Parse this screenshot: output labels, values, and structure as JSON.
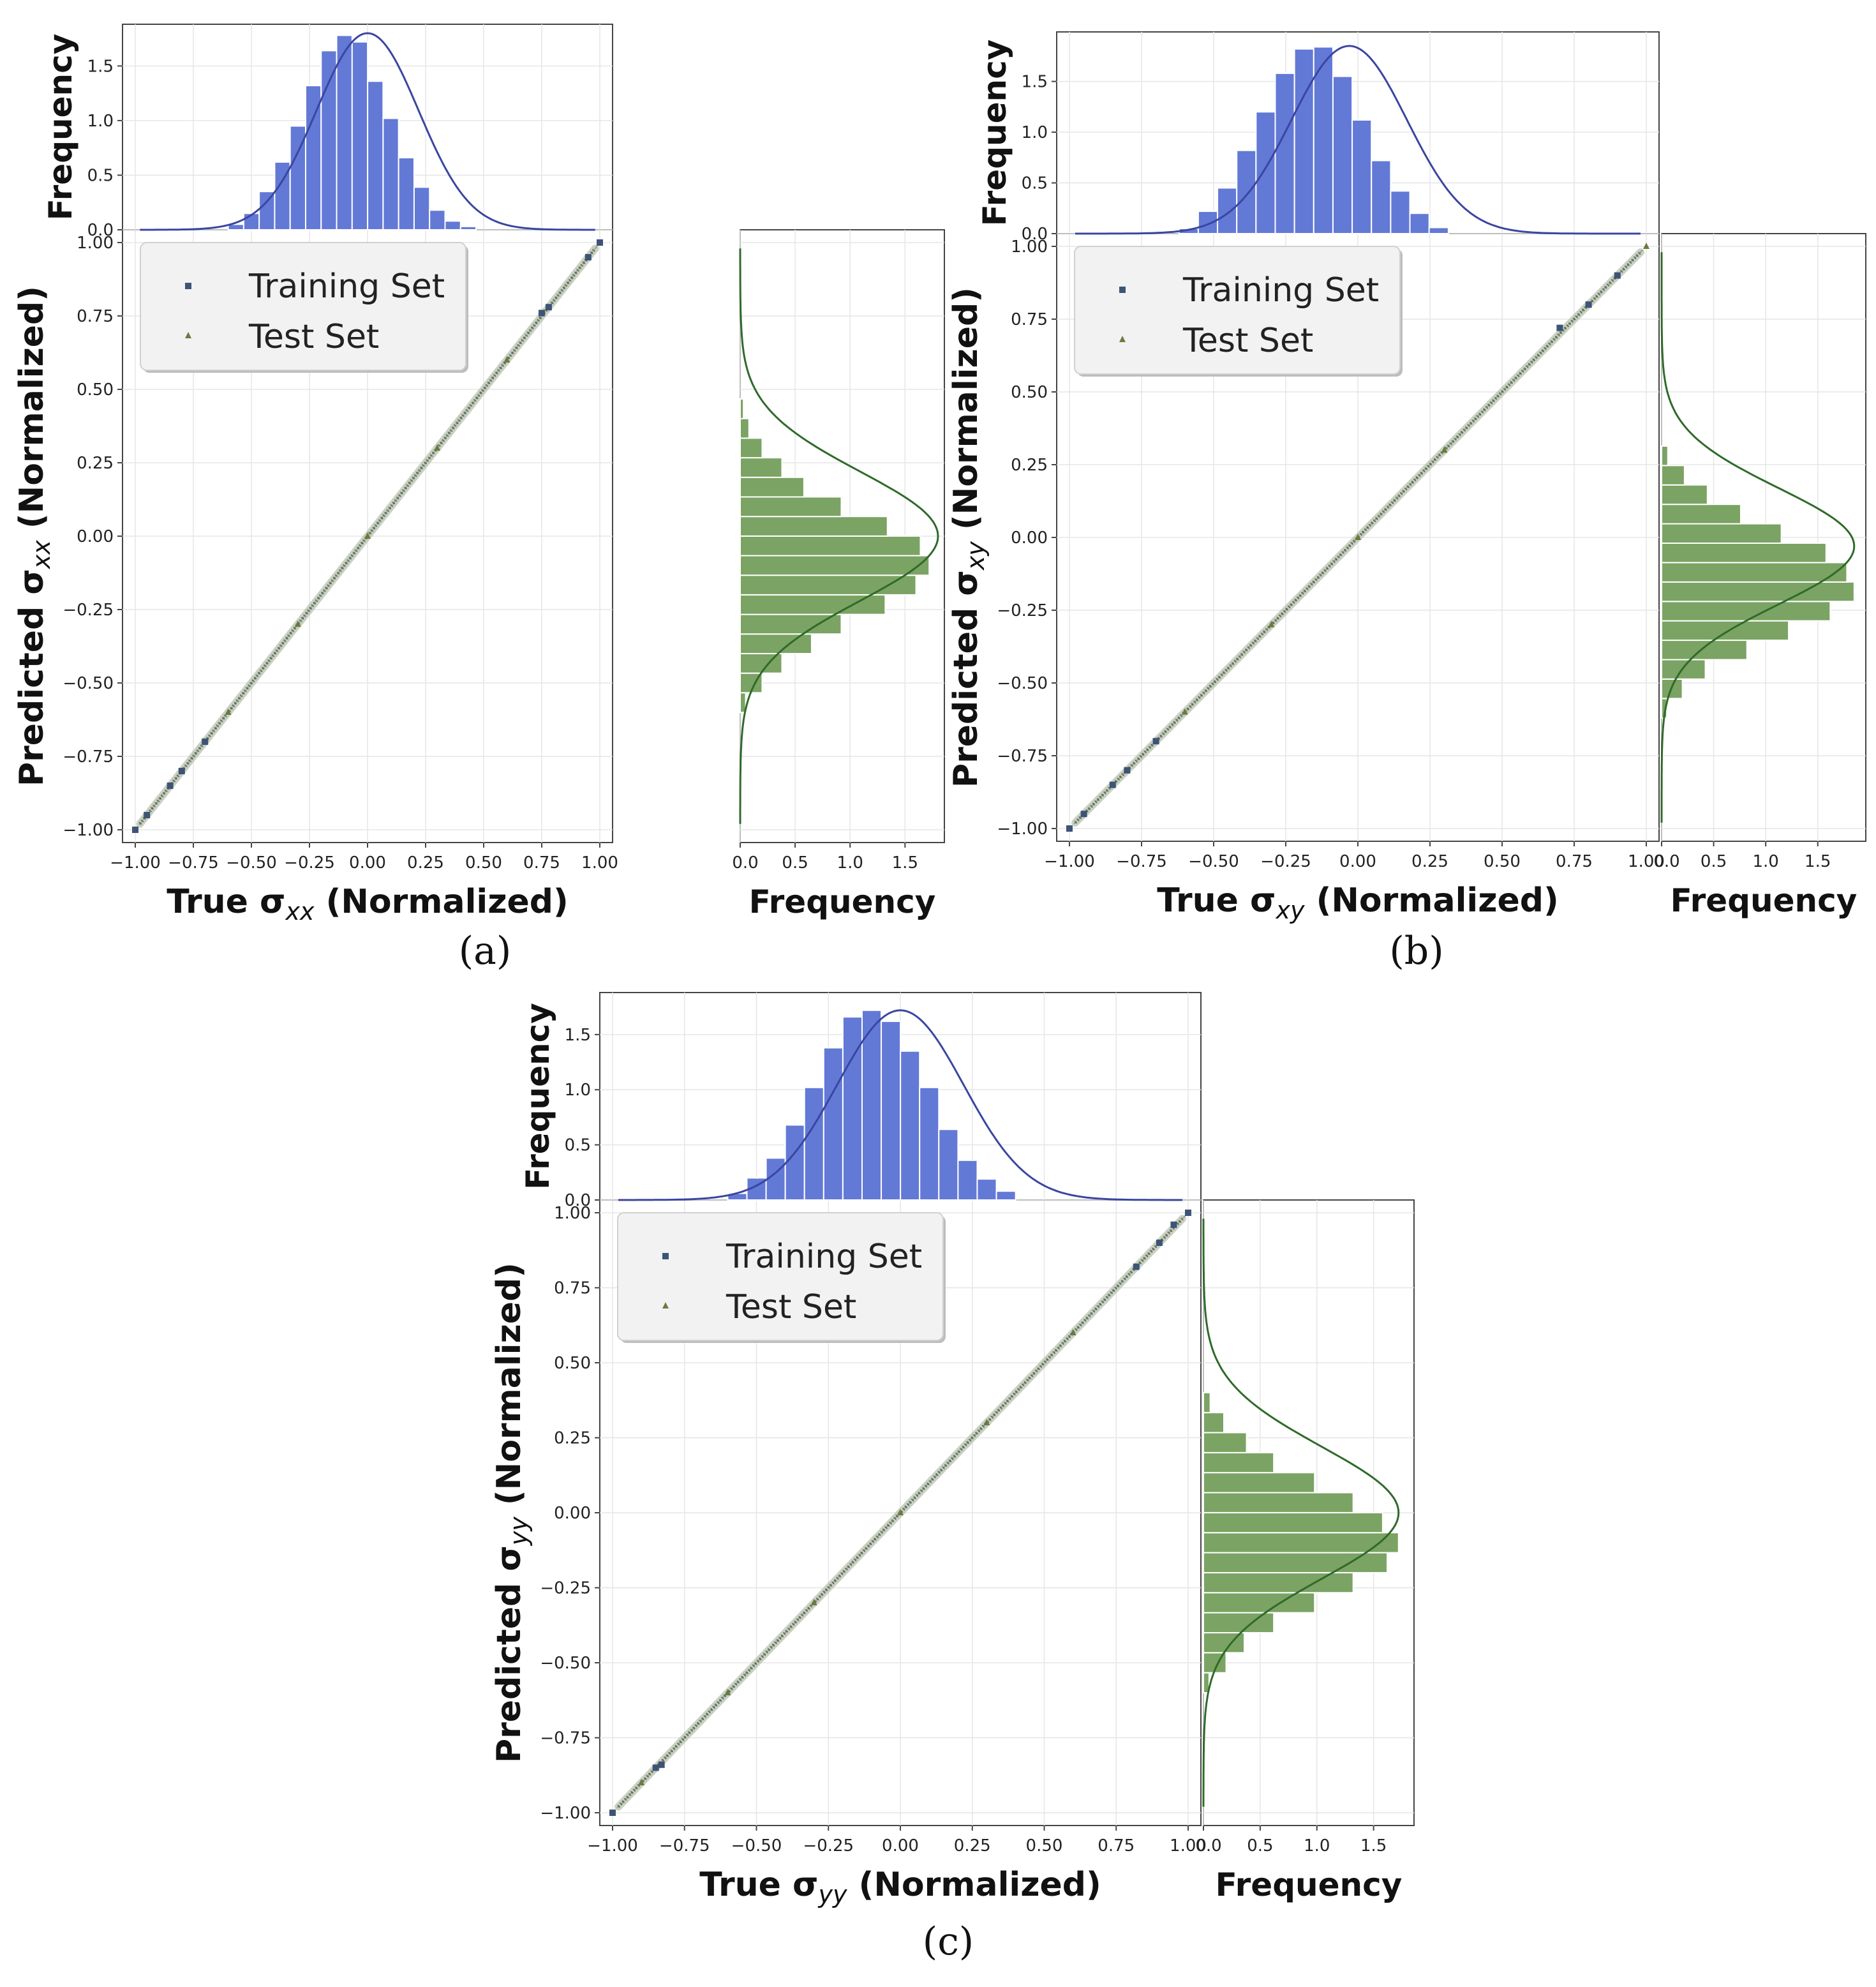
{
  "colors": {
    "top_hist_fill": "#6379d6",
    "top_kde_line": "#3a46a0",
    "side_hist_fill": "#7ba363",
    "side_kde_line": "#2f6a2a",
    "train_marker": "#3d5475",
    "test_marker": "#6b7a3f",
    "identity_line": "#333333",
    "grid": "#e6e6e6",
    "legend_bg": "#f2f2f2"
  },
  "chart_data": [
    {
      "panel": "a",
      "caption": "(a)",
      "type": "scatter",
      "subtype": "scatter_with_marginal_histograms",
      "xlabel": {
        "prefix": "True σ",
        "sub": "xx",
        "suffix": " (Normalized)"
      },
      "ylabel": {
        "prefix": "Predicted σ",
        "sub": "xx",
        "suffix": " (Normalized)"
      },
      "xlim": [
        -1.0,
        1.0
      ],
      "ylim": [
        -1.0,
        1.0
      ],
      "ticks": [
        -1.0,
        -0.75,
        -0.5,
        -0.25,
        0.0,
        0.25,
        0.5,
        0.75,
        1.0
      ],
      "tick_labels": [
        "−1.00",
        "−0.75",
        "−0.50",
        "−0.25",
        "0.00",
        "0.25",
        "0.50",
        "0.75",
        "1.00"
      ],
      "legend": [
        "Training Set",
        "Test Set"
      ],
      "series": [
        {
          "name": "Training Set",
          "marker": "square",
          "points": [
            [
              -1.0,
              -1.0
            ],
            [
              -0.95,
              -0.95
            ],
            [
              -0.85,
              -0.85
            ],
            [
              -0.8,
              -0.8
            ],
            [
              -0.7,
              -0.7
            ],
            [
              0.75,
              0.76
            ],
            [
              0.78,
              0.78
            ],
            [
              0.95,
              0.95
            ],
            [
              1.0,
              1.0
            ]
          ]
        },
        {
          "name": "Test Set",
          "marker": "triangle",
          "points": [
            [
              -0.6,
              -0.6
            ],
            [
              -0.3,
              -0.3
            ],
            [
              0.0,
              0.0
            ],
            [
              0.3,
              0.3
            ],
            [
              0.6,
              0.6
            ]
          ]
        }
      ],
      "identity_line": true,
      "top_histogram": {
        "ylabel": "Frequency",
        "ylim": [
          0.0,
          1.8
        ],
        "yticks": [
          0.0,
          0.5,
          1.0,
          1.5
        ],
        "ytick_labels": [
          "0.0",
          "0.5",
          "1.0",
          "1.5"
        ],
        "bin_start": -0.6,
        "bin_width": 0.0667,
        "values": [
          0.05,
          0.15,
          0.35,
          0.62,
          0.95,
          1.32,
          1.64,
          1.78,
          1.72,
          1.36,
          1.02,
          0.66,
          0.39,
          0.18,
          0.08,
          0.03
        ],
        "kde_mean": 0.0,
        "kde_sd": 0.22,
        "kde_peak": 1.8
      },
      "side_histogram": {
        "xlabel": "Frequency",
        "xlim": [
          0.0,
          1.8
        ],
        "xticks": [
          0.0,
          0.5,
          1.0,
          1.5
        ],
        "xtick_labels": [
          "0.0",
          "0.5",
          "1.0",
          "1.5"
        ],
        "bin_start": -0.6,
        "bin_width": 0.0667,
        "values": [
          0.05,
          0.2,
          0.38,
          0.65,
          0.92,
          1.32,
          1.6,
          1.72,
          1.64,
          1.34,
          0.92,
          0.58,
          0.38,
          0.2,
          0.08,
          0.03
        ],
        "kde_mean": 0.0,
        "kde_sd": 0.22,
        "kde_peak": 1.8
      }
    },
    {
      "panel": "b",
      "caption": "(b)",
      "type": "scatter",
      "subtype": "scatter_with_marginal_histograms",
      "xlabel": {
        "prefix": "True σ",
        "sub": "xy",
        "suffix": " (Normalized)"
      },
      "ylabel": {
        "prefix": "Predicted σ",
        "sub": "xy",
        "suffix": " (Normalized)"
      },
      "xlim": [
        -1.0,
        1.0
      ],
      "ylim": [
        -1.0,
        1.0
      ],
      "ticks": [
        -1.0,
        -0.75,
        -0.5,
        -0.25,
        0.0,
        0.25,
        0.5,
        0.75,
        1.0
      ],
      "tick_labels": [
        "−1.00",
        "−0.75",
        "−0.50",
        "−0.25",
        "0.00",
        "0.25",
        "0.50",
        "0.75",
        "1.00"
      ],
      "legend": [
        "Training Set",
        "Test Set"
      ],
      "series": [
        {
          "name": "Training Set",
          "marker": "square",
          "points": [
            [
              -1.0,
              -1.0
            ],
            [
              -0.95,
              -0.95
            ],
            [
              -0.85,
              -0.85
            ],
            [
              -0.8,
              -0.8
            ],
            [
              -0.7,
              -0.7
            ],
            [
              0.7,
              0.72
            ],
            [
              0.8,
              0.8
            ],
            [
              0.9,
              0.9
            ]
          ]
        },
        {
          "name": "Test Set",
          "marker": "triangle",
          "points": [
            [
              -0.6,
              -0.6
            ],
            [
              -0.3,
              -0.3
            ],
            [
              0.0,
              0.0
            ],
            [
              0.3,
              0.3
            ],
            [
              1.0,
              1.0
            ]
          ]
        }
      ],
      "identity_line": true,
      "top_histogram": {
        "ylabel": "Frequency",
        "ylim": [
          0.0,
          1.9
        ],
        "yticks": [
          0.0,
          0.5,
          1.0,
          1.5
        ],
        "ytick_labels": [
          "0.0",
          "0.5",
          "1.0",
          "1.5"
        ],
        "bin_start": -0.62,
        "bin_width": 0.0667,
        "values": [
          0.05,
          0.22,
          0.45,
          0.82,
          1.2,
          1.58,
          1.82,
          1.84,
          1.55,
          1.12,
          0.72,
          0.42,
          0.2,
          0.06
        ],
        "kde_mean": -0.03,
        "kde_sd": 0.2,
        "kde_peak": 1.85
      },
      "side_histogram": {
        "xlabel": "Frequency",
        "xlim": [
          0.0,
          1.9
        ],
        "xticks": [
          0.0,
          0.5,
          1.0,
          1.5
        ],
        "xtick_labels": [
          "0.0",
          "0.5",
          "1.0",
          "1.5"
        ],
        "bin_start": -0.62,
        "bin_width": 0.0667,
        "values": [
          0.05,
          0.2,
          0.42,
          0.82,
          1.22,
          1.62,
          1.85,
          1.78,
          1.58,
          1.15,
          0.76,
          0.44,
          0.22,
          0.06
        ],
        "kde_mean": -0.03,
        "kde_sd": 0.2,
        "kde_peak": 1.85
      }
    },
    {
      "panel": "c",
      "caption": "(c)",
      "type": "scatter",
      "subtype": "scatter_with_marginal_histograms",
      "xlabel": {
        "prefix": "True σ",
        "sub": "yy",
        "suffix": " (Normalized)"
      },
      "ylabel": {
        "prefix": "Predicted σ",
        "sub": "yy",
        "suffix": " (Normalized)"
      },
      "xlim": [
        -1.0,
        1.0
      ],
      "ylim": [
        -1.0,
        1.0
      ],
      "ticks": [
        -1.0,
        -0.75,
        -0.5,
        -0.25,
        0.0,
        0.25,
        0.5,
        0.75,
        1.0
      ],
      "tick_labels": [
        "−1.00",
        "−0.75",
        "−0.50",
        "−0.25",
        "0.00",
        "0.25",
        "0.50",
        "0.75",
        "1.00"
      ],
      "legend": [
        "Training Set",
        "Test Set"
      ],
      "series": [
        {
          "name": "Training Set",
          "marker": "square",
          "points": [
            [
              -1.0,
              -1.0
            ],
            [
              -0.85,
              -0.85
            ],
            [
              -0.83,
              -0.84
            ],
            [
              0.82,
              0.82
            ],
            [
              0.9,
              0.9
            ],
            [
              0.95,
              0.96
            ],
            [
              1.0,
              1.0
            ]
          ]
        },
        {
          "name": "Test Set",
          "marker": "triangle",
          "points": [
            [
              -0.9,
              -0.9
            ],
            [
              -0.6,
              -0.6
            ],
            [
              -0.3,
              -0.3
            ],
            [
              0.0,
              0.0
            ],
            [
              0.3,
              0.3
            ],
            [
              0.6,
              0.6
            ]
          ]
        }
      ],
      "identity_line": true,
      "top_histogram": {
        "ylabel": "Frequency",
        "ylim": [
          0.0,
          1.8
        ],
        "yticks": [
          0.0,
          0.5,
          1.0,
          1.5
        ],
        "ytick_labels": [
          "0.0",
          "0.5",
          "1.0",
          "1.5"
        ],
        "bin_start": -0.6,
        "bin_width": 0.0667,
        "values": [
          0.06,
          0.2,
          0.38,
          0.68,
          1.02,
          1.38,
          1.66,
          1.72,
          1.62,
          1.35,
          1.02,
          0.64,
          0.36,
          0.19,
          0.08
        ],
        "kde_mean": 0.0,
        "kde_sd": 0.22,
        "kde_peak": 1.72
      },
      "side_histogram": {
        "xlabel": "Frequency",
        "xlim": [
          0.0,
          1.8
        ],
        "xticks": [
          0.0,
          0.5,
          1.0,
          1.5
        ],
        "xtick_labels": [
          "0.0",
          "0.5",
          "1.0",
          "1.5"
        ],
        "bin_start": -0.6,
        "bin_width": 0.0667,
        "values": [
          0.05,
          0.2,
          0.36,
          0.62,
          0.98,
          1.32,
          1.62,
          1.72,
          1.58,
          1.32,
          0.98,
          0.62,
          0.38,
          0.18,
          0.06
        ],
        "kde_mean": 0.0,
        "kde_sd": 0.22,
        "kde_peak": 1.72
      }
    }
  ]
}
